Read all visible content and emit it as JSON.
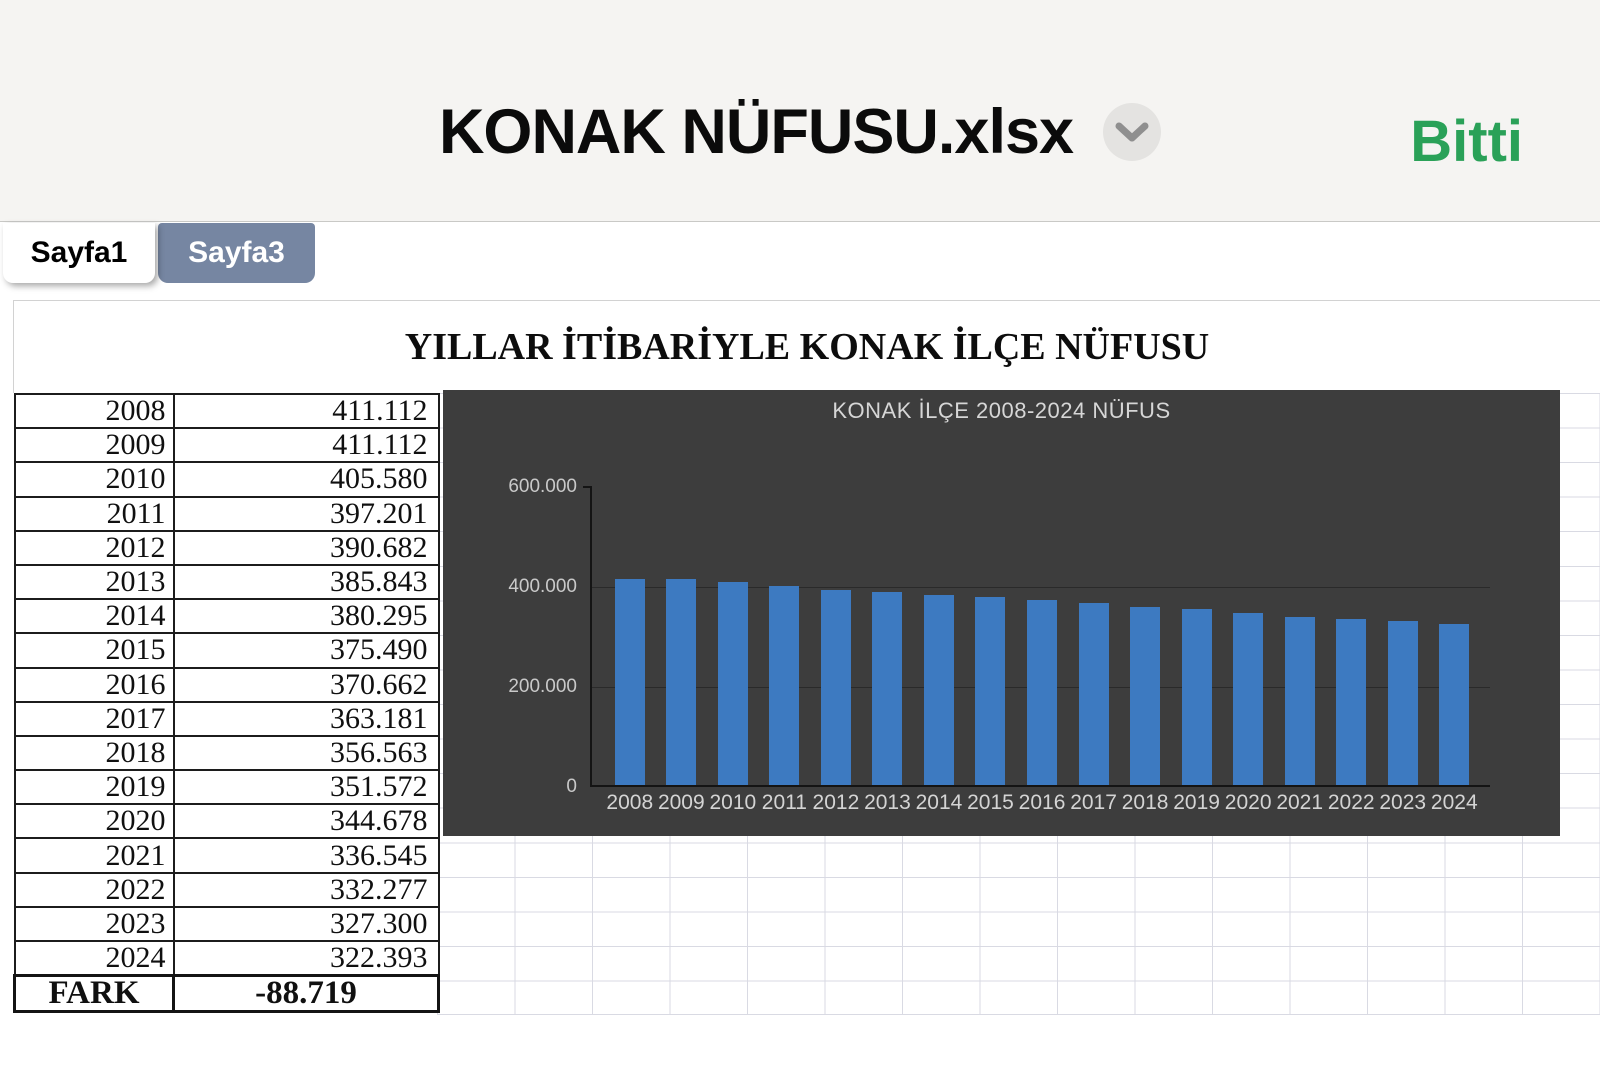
{
  "header": {
    "title": "KONAK NÜFUSU.xlsx",
    "done_label": "Bitti",
    "accent_green": "#2aa158"
  },
  "tabs": [
    {
      "label": "Sayfa1",
      "active": true
    },
    {
      "label": "Sayfa3",
      "active": false
    }
  ],
  "sheet": {
    "title": "YILLAR İTİBARİYLE KONAK İLÇE NÜFUSU",
    "table": {
      "rows": [
        [
          "2008",
          "411.112"
        ],
        [
          "2009",
          "411.112"
        ],
        [
          "2010",
          "405.580"
        ],
        [
          "2011",
          "397.201"
        ],
        [
          "2012",
          "390.682"
        ],
        [
          "2013",
          "385.843"
        ],
        [
          "2014",
          "380.295"
        ],
        [
          "2015",
          "375.490"
        ],
        [
          "2016",
          "370.662"
        ],
        [
          "2017",
          "363.181"
        ],
        [
          "2018",
          "356.563"
        ],
        [
          "2019",
          "351.572"
        ],
        [
          "2020",
          "344.678"
        ],
        [
          "2021",
          "336.545"
        ],
        [
          "2022",
          "332.277"
        ],
        [
          "2023",
          "327.300"
        ],
        [
          "2024",
          "322.393"
        ]
      ],
      "footer": [
        "FARK",
        "-88.719"
      ]
    }
  },
  "chart_data": {
    "type": "bar",
    "title": "KONAK İLÇE 2008-2024 NÜFUS",
    "categories": [
      "2008",
      "2009",
      "2010",
      "2011",
      "2012",
      "2013",
      "2014",
      "2015",
      "2016",
      "2017",
      "2018",
      "2019",
      "2020",
      "2021",
      "2022",
      "2023",
      "2024"
    ],
    "values": [
      411112,
      411112,
      405580,
      397201,
      390682,
      385843,
      380295,
      375490,
      370662,
      363181,
      356563,
      351572,
      344678,
      336545,
      332277,
      327300,
      322393
    ],
    "xlabel": "",
    "ylabel": "",
    "ylim": [
      0,
      600000
    ],
    "ytick_labels": [
      "600.000",
      "400.000",
      "200.000",
      "0"
    ],
    "grid": true,
    "legend_position": "none",
    "bar_color": "#3d7ac1",
    "background_color": "#3d3d3d"
  }
}
